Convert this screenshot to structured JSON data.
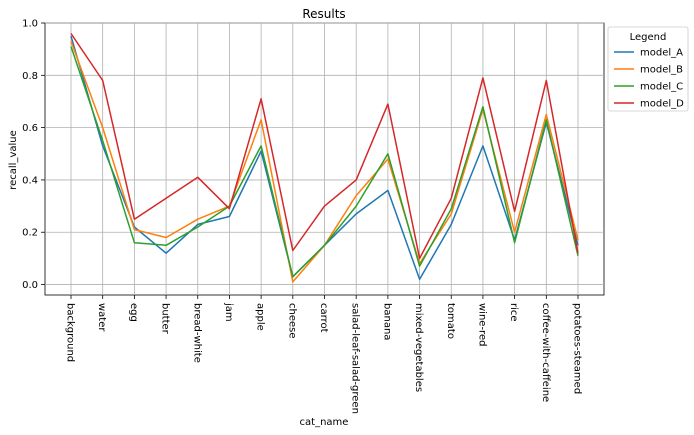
{
  "chart_data": {
    "type": "line",
    "title": "Results",
    "xlabel": "cat_name",
    "ylabel": "recall_value",
    "ylim": [
      -0.04,
      1.0
    ],
    "yticks": [
      0.0,
      0.2,
      0.4,
      0.6,
      0.8,
      1.0
    ],
    "ytick_labels": [
      "0.0",
      "0.2",
      "0.4",
      "0.6",
      "0.8",
      "1.0"
    ],
    "grid": true,
    "legend_title": "Legend",
    "legend_position": "outside right, top",
    "categories": [
      "background",
      "water",
      "egg",
      "butter",
      "bread-white",
      "jam",
      "apple",
      "cheese",
      "carrot",
      "salad-leaf-salad-green",
      "banana",
      "mixed-vegetables",
      "tomato",
      "wine-red",
      "rice",
      "coffee-with-caffeine",
      "potatoes-steamed"
    ],
    "series": [
      {
        "name": "model_A",
        "color": "#1f77b4",
        "values": [
          0.95,
          0.53,
          0.22,
          0.12,
          0.23,
          0.26,
          0.51,
          0.03,
          0.15,
          0.27,
          0.36,
          0.02,
          0.23,
          0.53,
          0.17,
          0.62,
          0.15
        ]
      },
      {
        "name": "model_B",
        "color": "#ff7f0e",
        "values": [
          0.93,
          0.6,
          0.21,
          0.18,
          0.25,
          0.3,
          0.63,
          0.01,
          0.15,
          0.34,
          0.48,
          0.08,
          0.27,
          0.67,
          0.2,
          0.65,
          0.17
        ]
      },
      {
        "name": "model_C",
        "color": "#2ca02c",
        "values": [
          0.91,
          0.55,
          0.16,
          0.15,
          0.22,
          0.3,
          0.53,
          0.03,
          0.15,
          0.3,
          0.5,
          0.07,
          0.29,
          0.68,
          0.16,
          0.63,
          0.11
        ]
      },
      {
        "name": "model_D",
        "color": "#d62728",
        "values": [
          0.96,
          0.78,
          0.25,
          0.33,
          0.41,
          0.29,
          0.71,
          0.13,
          0.3,
          0.4,
          0.69,
          0.1,
          0.33,
          0.79,
          0.28,
          0.78,
          0.12
        ]
      }
    ]
  }
}
